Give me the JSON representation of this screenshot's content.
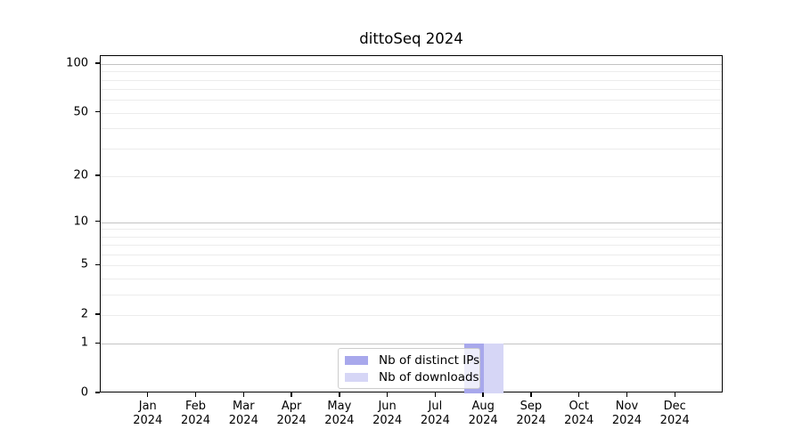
{
  "title": "dittoSeq 2024",
  "chart_data": {
    "type": "bar",
    "title": "dittoSeq 2024",
    "categories": [
      "Jan",
      "Feb",
      "Mar",
      "Apr",
      "May",
      "Jun",
      "Jul",
      "Aug",
      "Sep",
      "Oct",
      "Nov",
      "Dec"
    ],
    "category_year": "2024",
    "series": [
      {
        "name": "Nb of distinct IPs",
        "color": "#a8a8ec",
        "values": [
          0,
          0,
          0,
          0,
          0,
          0,
          0,
          1,
          0,
          0,
          0,
          0
        ]
      },
      {
        "name": "Nb of downloads",
        "color": "#d6d6f6",
        "values": [
          0,
          0,
          0,
          0,
          0,
          0,
          0,
          1,
          0,
          0,
          0,
          0
        ]
      }
    ],
    "xlabel": "",
    "ylabel": "",
    "y_scale": "log1p",
    "y_ticks": [
      0,
      1,
      2,
      5,
      10,
      20,
      50,
      100
    ],
    "ylim": [
      0,
      112
    ],
    "grid_major": [
      1,
      10,
      100
    ],
    "grid_minor": [
      2,
      3,
      4,
      5,
      6,
      7,
      8,
      9,
      20,
      30,
      40,
      50,
      60,
      70,
      80,
      90
    ],
    "legend_position": "bottom-center",
    "legend_entries": [
      "Nb of distinct IPs",
      "Nb of downloads"
    ]
  },
  "colors": {
    "bar_distinct_ips": "#a8a8ec",
    "bar_downloads": "#d6d6f6",
    "grid_major": "#c3c3c3",
    "grid_minor": "#ececec",
    "axis": "#000000",
    "legend_border": "#cccccc",
    "background": "#ffffff"
  }
}
